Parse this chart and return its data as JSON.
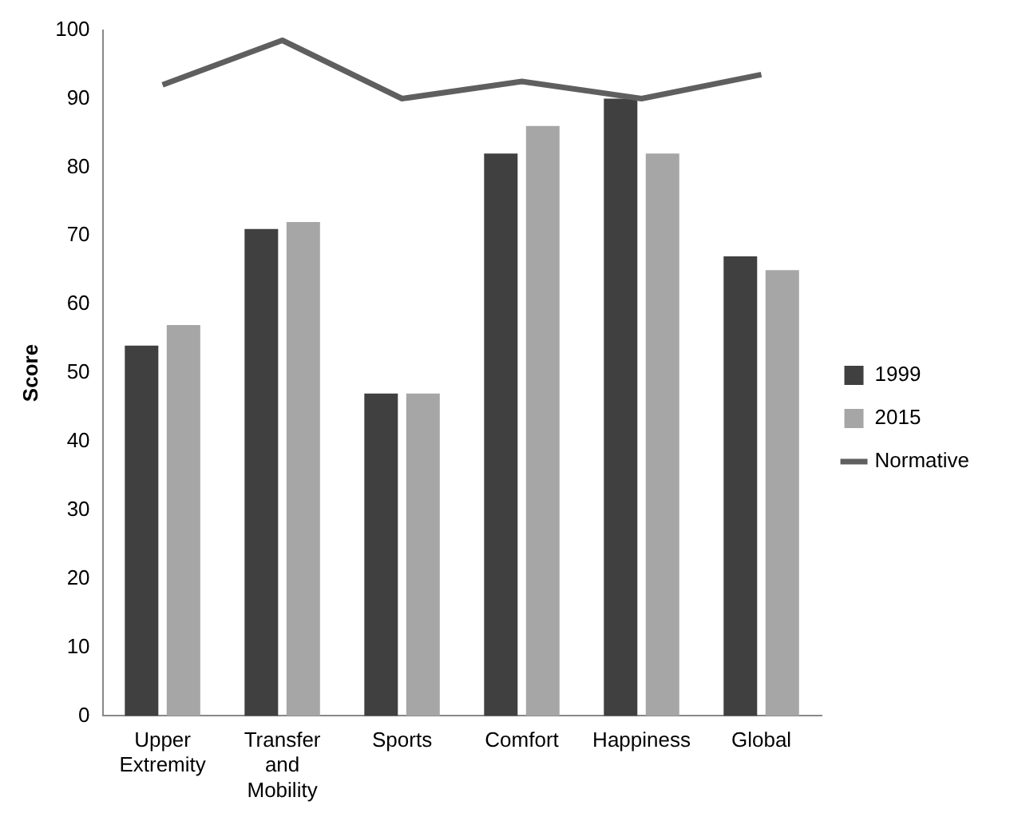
{
  "chart_data": {
    "type": "bar",
    "ylabel": "Score",
    "categories": [
      "Upper Extremity",
      "Transfer and Mobility",
      "Sports",
      "Comfort",
      "Happiness",
      "Global"
    ],
    "series": [
      {
        "name": "1999",
        "color": "#404040",
        "values": [
          54,
          71,
          47,
          82,
          90,
          67
        ]
      },
      {
        "name": "2015",
        "color": "#a6a6a6",
        "values": [
          57,
          72,
          47,
          86,
          82,
          65
        ]
      },
      {
        "name": "Normative",
        "type": "line",
        "color": "#5f5f5f",
        "values": [
          92,
          98.5,
          90,
          92.5,
          90,
          93.5
        ]
      }
    ],
    "ylim": [
      0,
      100
    ],
    "yticks": [
      0,
      10,
      20,
      30,
      40,
      50,
      60,
      70,
      80,
      90,
      100
    ],
    "grid": false,
    "legend": "right",
    "marker": "none"
  }
}
